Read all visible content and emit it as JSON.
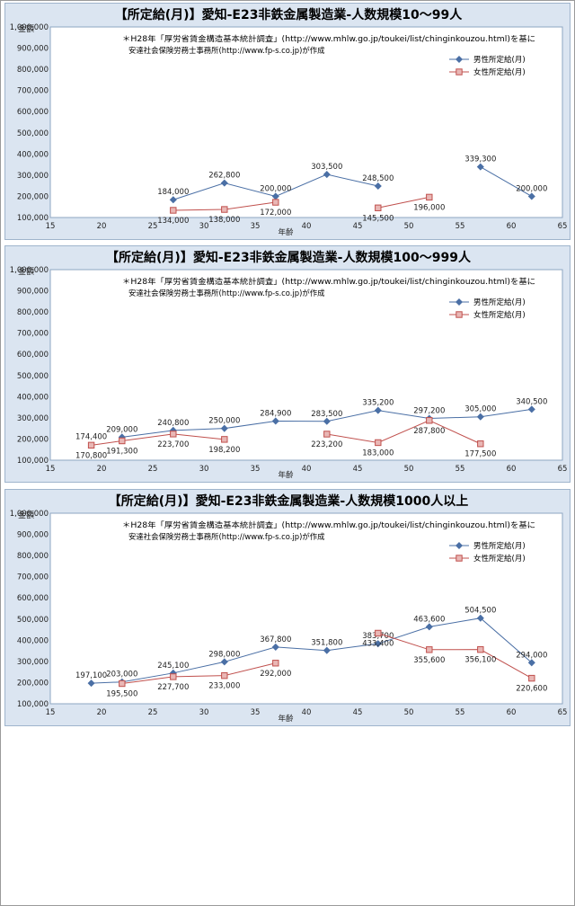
{
  "chart_data": [
    {
      "type": "line",
      "title": "【所定給(月)】愛知-E23非鉄金属製造業-人数規模10～99人",
      "ylabel": "金額",
      "xlabel": "年齢",
      "note_line1": "＊H28年「厚労省賃金構造基本統計調査」(http://www.mhlw.go.jp/toukei/list/chinginkouzou.html)を基に",
      "note_line2": "安達社会保険労務士事務所(http://www.fp-s.co.jp)が作成",
      "xlim": [
        15,
        65
      ],
      "ylim": [
        100000,
        1000000
      ],
      "x_ticks": [
        "15",
        "20",
        "25",
        "30",
        "35",
        "40",
        "45",
        "50",
        "55",
        "60",
        "65"
      ],
      "y_ticks": [
        "100,000",
        "200,000",
        "300,000",
        "400,000",
        "500,000",
        "600,000",
        "700,000",
        "800,000",
        "900,000",
        "1,000,000"
      ],
      "legend_position": "top-right",
      "series": [
        {
          "name": "男性所定給(月)",
          "color": "#4a6fa5",
          "marker": "diamond",
          "segments": [
            [
              {
                "x": 27,
                "y": 184000,
                "label": "184,000"
              },
              {
                "x": 32,
                "y": 262800,
                "label": "262,800"
              },
              {
                "x": 37,
                "y": 200000,
                "label": "200,000"
              },
              {
                "x": 42,
                "y": 303500,
                "label": "303,500"
              },
              {
                "x": 47,
                "y": 248500,
                "label": "248,500"
              }
            ],
            [
              {
                "x": 57,
                "y": 339300,
                "label": "339,300"
              },
              {
                "x": 62,
                "y": 200000,
                "label": "200,000"
              }
            ]
          ]
        },
        {
          "name": "女性所定給(月)",
          "color": "#c0504d",
          "marker": "square",
          "segments": [
            [
              {
                "x": 27,
                "y": 134000,
                "label": "134,000"
              },
              {
                "x": 32,
                "y": 138000,
                "label": "138,000"
              },
              {
                "x": 37,
                "y": 172000,
                "label": "172,000"
              }
            ],
            [
              {
                "x": 47,
                "y": 145500,
                "label": "145,500"
              },
              {
                "x": 52,
                "y": 196000,
                "label": "196,000"
              }
            ]
          ]
        }
      ]
    },
    {
      "type": "line",
      "title": "【所定給(月)】愛知-E23非鉄金属製造業-人数規模100～999人",
      "ylabel": "金額",
      "xlabel": "年齢",
      "note_line1": "＊H28年「厚労省賃金構造基本統計調査」(http://www.mhlw.go.jp/toukei/list/chinginkouzou.html)を基に",
      "note_line2": "安達社会保険労務士事務所(http://www.fp-s.co.jp)が作成",
      "xlim": [
        15,
        65
      ],
      "ylim": [
        100000,
        1000000
      ],
      "x_ticks": [
        "15",
        "20",
        "25",
        "30",
        "35",
        "40",
        "45",
        "50",
        "55",
        "60",
        "65"
      ],
      "y_ticks": [
        "100,000",
        "200,000",
        "300,000",
        "400,000",
        "500,000",
        "600,000",
        "700,000",
        "800,000",
        "900,000",
        "1,000,000"
      ],
      "legend_position": "top-right",
      "series": [
        {
          "name": "男性所定給(月)",
          "color": "#4a6fa5",
          "marker": "diamond",
          "segments": [
            [
              {
                "x": 22,
                "y": 209000,
                "label": "209,000"
              },
              {
                "x": 27,
                "y": 240800,
                "label": "240,800"
              },
              {
                "x": 32,
                "y": 250000,
                "label": "250,000"
              },
              {
                "x": 37,
                "y": 284900,
                "label": "284,900"
              },
              {
                "x": 42,
                "y": 283500,
                "label": "283,500"
              },
              {
                "x": 47,
                "y": 335200,
                "label": "335,200"
              },
              {
                "x": 52,
                "y": 297200,
                "label": "297,200"
              },
              {
                "x": 57,
                "y": 305000,
                "label": "305,000"
              },
              {
                "x": 62,
                "y": 340500,
                "label": "340,500"
              }
            ]
          ]
        },
        {
          "name": "女性所定給(月)",
          "color": "#c0504d",
          "marker": "square",
          "segments": [
            [
              {
                "x": 19,
                "y": 170800,
                "label": "170,800"
              },
              {
                "x": 22,
                "y": 191300,
                "label": "191,300"
              },
              {
                "x": 27,
                "y": 223700,
                "label": "223,700"
              },
              {
                "x": 32,
                "y": 198200,
                "label": "198,200"
              }
            ],
            [
              {
                "x": 42,
                "y": 223200,
                "label": "223,200"
              },
              {
                "x": 47,
                "y": 183000,
                "label": "183,000"
              },
              {
                "x": 52,
                "y": 287800,
                "label": "287,800"
              },
              {
                "x": 57,
                "y": 177500,
                "label": "177,500"
              }
            ]
          ]
        }
      ],
      "extra_labels": [
        {
          "x": 19,
          "y": 174400,
          "label": "174,400",
          "color": "#4a6fa5"
        }
      ]
    },
    {
      "type": "line",
      "title": "【所定給(月)】愛知-E23非鉄金属製造業-人数規模1000人以上",
      "ylabel": "金額",
      "xlabel": "年齢",
      "note_line1": "＊H28年「厚労省賃金構造基本統計調査」(http://www.mhlw.go.jp/toukei/list/chinginkouzou.html)を基に",
      "note_line2": "安達社会保険労務士事務所(http://www.fp-s.co.jp)が作成",
      "xlim": [
        15,
        65
      ],
      "ylim": [
        100000,
        1000000
      ],
      "x_ticks": [
        "15",
        "20",
        "25",
        "30",
        "35",
        "40",
        "45",
        "50",
        "55",
        "60",
        "65"
      ],
      "y_ticks": [
        "100,000",
        "200,000",
        "300,000",
        "400,000",
        "500,000",
        "600,000",
        "700,000",
        "800,000",
        "900,000",
        "1,000,000"
      ],
      "legend_position": "top-right",
      "series": [
        {
          "name": "男性所定給(月)",
          "color": "#4a6fa5",
          "marker": "diamond",
          "segments": [
            [
              {
                "x": 19,
                "y": 197100,
                "label": "197,100"
              },
              {
                "x": 22,
                "y": 203000,
                "label": "203,000"
              },
              {
                "x": 27,
                "y": 245100,
                "label": "245,100"
              },
              {
                "x": 32,
                "y": 298000,
                "label": "298,000"
              },
              {
                "x": 37,
                "y": 367800,
                "label": "367,800"
              },
              {
                "x": 42,
                "y": 351800,
                "label": "351,800"
              },
              {
                "x": 47,
                "y": 383700,
                "label": "383,700"
              },
              {
                "x": 52,
                "y": 463600,
                "label": "463,600"
              },
              {
                "x": 57,
                "y": 504500,
                "label": "504,500"
              },
              {
                "x": 62,
                "y": 294000,
                "label": "294,000"
              }
            ]
          ]
        },
        {
          "name": "女性所定給(月)",
          "color": "#c0504d",
          "marker": "square",
          "segments": [
            [
              {
                "x": 22,
                "y": 195500,
                "label": "195,500"
              },
              {
                "x": 27,
                "y": 227700,
                "label": "227,700"
              },
              {
                "x": 32,
                "y": 233000,
                "label": "233,000"
              },
              {
                "x": 37,
                "y": 292000,
                "label": "292,000"
              }
            ],
            [
              {
                "x": 47,
                "y": 433400,
                "label": "433,400"
              },
              {
                "x": 52,
                "y": 355600,
                "label": "355,600"
              },
              {
                "x": 57,
                "y": 356100,
                "label": "356,100"
              },
              {
                "x": 62,
                "y": 220600,
                "label": "220,600"
              }
            ]
          ]
        }
      ]
    }
  ]
}
